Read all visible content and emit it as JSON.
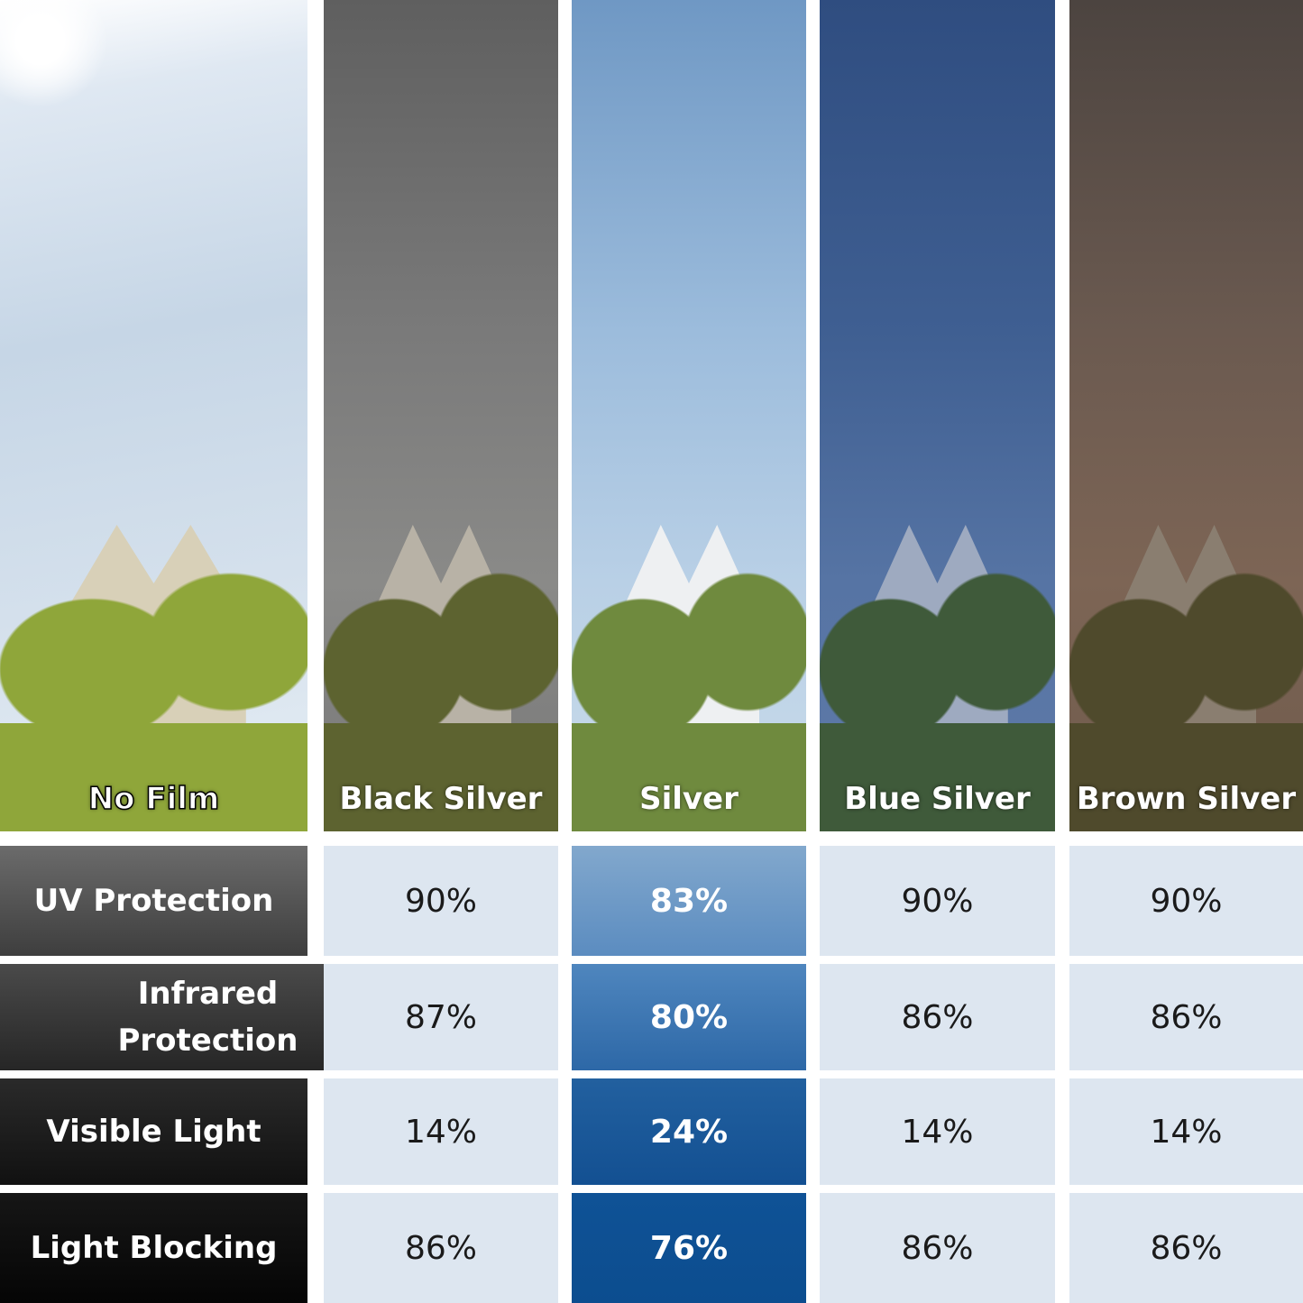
{
  "columns": [
    "No Film",
    "Black Silver",
    "Silver",
    "Blue Silver",
    "Brown Silver"
  ],
  "rows": [
    {
      "label": "UV Protection",
      "values": [
        "90%",
        "83%",
        "90%",
        "90%"
      ]
    },
    {
      "label": "Infrared Protection",
      "values": [
        "87%",
        "80%",
        "86%",
        "86%"
      ]
    },
    {
      "label": "Visible Light",
      "values": [
        "14%",
        "24%",
        "14%",
        "14%"
      ]
    },
    {
      "label": "Light Blocking",
      "values": [
        "86%",
        "76%",
        "86%",
        "86%"
      ]
    }
  ],
  "colors": {
    "highlight": "#134f91",
    "cell_bg": "#dde6f0",
    "label_bg": "#2a2a2a"
  }
}
